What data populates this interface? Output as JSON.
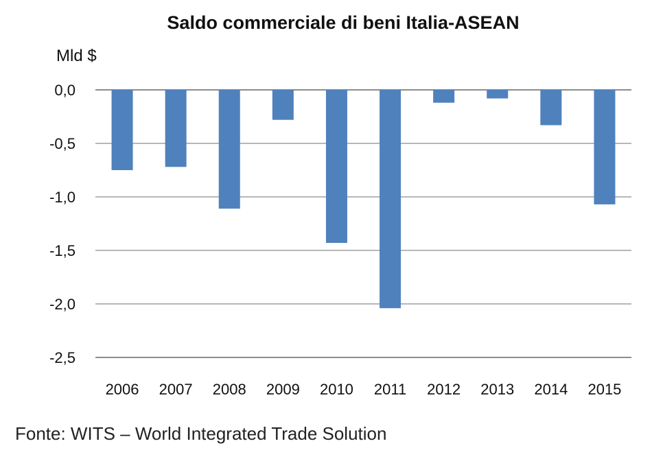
{
  "chart_data": {
    "type": "bar",
    "title": "Saldo commerciale di beni Italia-ASEAN",
    "ylabel": "Mld $",
    "xlabel": "",
    "categories": [
      "2006",
      "2007",
      "2008",
      "2009",
      "2010",
      "2011",
      "2012",
      "2013",
      "2014",
      "2015"
    ],
    "values": [
      -0.75,
      -0.72,
      -1.11,
      -0.28,
      -1.43,
      -2.04,
      -0.12,
      -0.08,
      -0.33,
      -1.07
    ],
    "ylim": [
      -2.5,
      0
    ],
    "yticks": [
      0,
      -0.5,
      -1,
      -1.5,
      -2,
      -2.5
    ],
    "ytick_labels": [
      "0,0",
      "-0,5",
      "-1,0",
      "-1,5",
      "-2,0",
      "-2,5"
    ],
    "grid": true,
    "legend": "none",
    "bar_color": "#4f81bd",
    "grid_color": "#8c8c8c"
  },
  "source": "Fonte: WITS – World Integrated Trade Solution"
}
